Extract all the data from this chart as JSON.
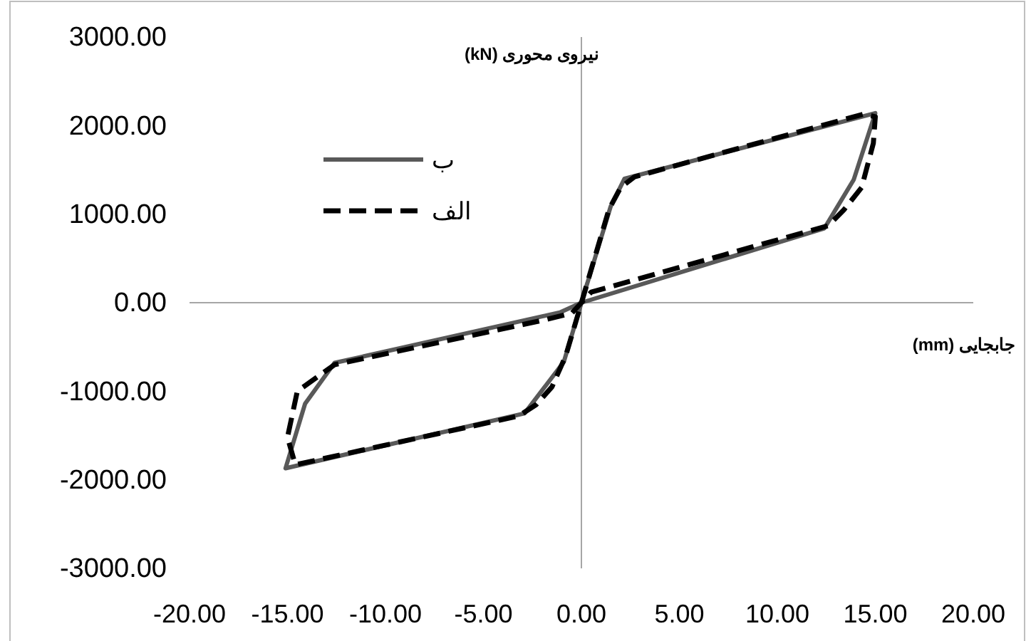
{
  "chart_data": {
    "type": "line",
    "xlabel": "جابجایی (mm)",
    "ylabel": "نیروی محوری (kN)",
    "xlim": [
      -20,
      20
    ],
    "ylim": [
      -3000,
      3000
    ],
    "xticks": [
      {
        "value": -20,
        "label": "-20.00"
      },
      {
        "value": -15,
        "label": "-15.00"
      },
      {
        "value": -10,
        "label": "-10.00"
      },
      {
        "value": -5,
        "label": "-5.00"
      },
      {
        "value": 0,
        "label": "0.00"
      },
      {
        "value": 5,
        "label": "5.00"
      },
      {
        "value": 10,
        "label": "10.00"
      },
      {
        "value": 15,
        "label": "15.00"
      },
      {
        "value": 20,
        "label": "20.00"
      }
    ],
    "yticks": [
      {
        "value": -3000,
        "label": "-3000.00"
      },
      {
        "value": -2000,
        "label": "-2000.00"
      },
      {
        "value": -1000,
        "label": "-1000.00"
      },
      {
        "value": 0,
        "label": "0.00"
      },
      {
        "value": 1000,
        "label": "1000.00"
      },
      {
        "value": 2000,
        "label": "2000.00"
      },
      {
        "value": 3000,
        "label": "3000.00"
      }
    ],
    "legend": "top left",
    "marker": "none",
    "series": [
      {
        "name": "ب",
        "color": "#595959",
        "line_style": "solid",
        "x": [
          0,
          1.5,
          2.2,
          15.0,
          13.9,
          12.4,
          0,
          -1.1,
          -12.6,
          -14.1,
          -15.1,
          -2.9,
          -0.9,
          0.3
        ],
        "values": [
          0,
          1090,
          1400,
          2140,
          1390,
          840,
          0,
          -110,
          -680,
          -1140,
          -1870,
          -1250,
          -670,
          220
        ]
      },
      {
        "name": "الف",
        "color": "#000000",
        "line_style": "dashed",
        "x": [
          0,
          1.4,
          2.0,
          2.7,
          14.4,
          15.0,
          14.9,
          14.3,
          13.4,
          12.6,
          0.5,
          0,
          -0.5,
          -2.0,
          -12.6,
          -14.5,
          -15.0,
          -14.6,
          -3.2,
          -2.3,
          -1.5,
          -0.8,
          0.3
        ],
        "values": [
          0,
          1050,
          1300,
          1420,
          2130,
          2100,
          1800,
          1300,
          1050,
          870,
          120,
          0,
          -120,
          -200,
          -700,
          -1000,
          -1520,
          -1830,
          -1280,
          -1150,
          -950,
          -600,
          220
        ]
      }
    ]
  }
}
